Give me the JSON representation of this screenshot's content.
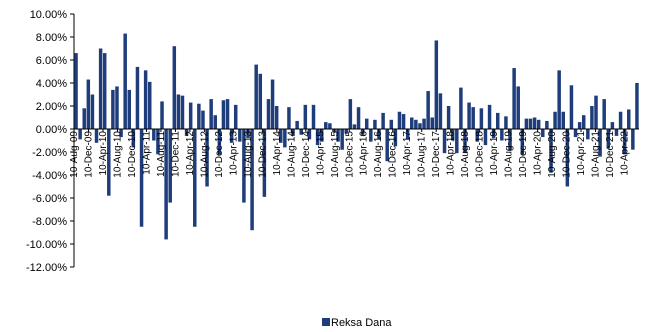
{
  "chart_data": {
    "type": "bar",
    "ylim": [
      -0.12,
      0.1
    ],
    "y_ticks": [
      0.1,
      0.08,
      0.06,
      0.04,
      0.02,
      0.0,
      -0.02,
      -0.04,
      -0.06,
      -0.08,
      -0.1,
      -0.12
    ],
    "y_tick_labels": [
      "10.00%",
      "8.00%",
      "6.00%",
      "4.00%",
      "2.00%",
      "0.00%",
      "-2.00%",
      "-4.00%",
      "-6.00%",
      "-8.00%",
      "-10.00%",
      "-12.00%"
    ],
    "x_tick_labels": [
      "10-Aug-09",
      "10-Dec-09",
      "10-Apr-10",
      "10-Aug-10",
      "10-Dec-10",
      "10-Apr-11",
      "10-Aug-11",
      "10-Dec-11",
      "10-Apr-12",
      "10-Aug-12",
      "10-Dec-12",
      "10-Apr-13",
      "10-Aug-13",
      "10-Dec-13",
      "10-Apr-14",
      "10-Aug-14",
      "10-Dec-14",
      "10-Apr-15",
      "10-Aug-15",
      "10-Dec-15",
      "10-Apr-16",
      "10-Aug-16",
      "10-Dec-16",
      "10-Apr-17",
      "10-Aug-17",
      "10-Dec-17",
      "10-Apr-18",
      "10-Aug-18",
      "10-Dec-18",
      "10-Apr-19",
      "10-Aug-19",
      "10-Dec-19",
      "10-Apr-20",
      "10-Aug-20",
      "10-Dec-20",
      "10-Apr-21",
      "10-Aug-21",
      "10-Dec-21",
      "10-Apr-22"
    ],
    "grid": false,
    "legend_position": "bottom-center",
    "series": [
      {
        "name": "Reksa Dana",
        "color": "#1f3d7a",
        "values": [
          0.066,
          -0.009,
          0.018,
          0.043,
          0.03,
          -0.012,
          0.07,
          0.066,
          -0.058,
          0.034,
          0.037,
          -0.007,
          0.083,
          0.034,
          -0.016,
          0.054,
          -0.085,
          0.051,
          0.041,
          -0.01,
          -0.022,
          0.024,
          -0.096,
          -0.064,
          0.072,
          0.03,
          0.029,
          -0.006,
          0.023,
          -0.085,
          0.022,
          0.016,
          -0.05,
          0.026,
          0.012,
          -0.022,
          0.025,
          0.026,
          -0.012,
          0.021,
          -0.011,
          -0.064,
          -0.008,
          -0.088,
          0.056,
          0.048,
          -0.059,
          0.026,
          0.043,
          0.02,
          -0.012,
          -0.016,
          0.019,
          -0.006,
          0.007,
          -0.005,
          0.021,
          -0.009,
          0.021,
          -0.014,
          -0.011,
          0.006,
          0.005,
          -0.003,
          -0.011,
          -0.018,
          -0.004,
          0.026,
          0.004,
          0.019,
          -0.005,
          0.009,
          -0.011,
          0.008,
          -0.009,
          0.014,
          -0.028,
          0.008,
          -0.015,
          0.015,
          0.013,
          -0.009,
          0.01,
          0.008,
          0.005,
          0.009,
          0.033,
          0.01,
          0.077,
          0.031,
          -0.021,
          0.02,
          -0.01,
          -0.021,
          0.036,
          -0.021,
          0.023,
          0.019,
          -0.011,
          0.018,
          -0.014,
          0.021,
          -0.008,
          0.014,
          -0.01,
          0.011,
          -0.019,
          0.053,
          0.037,
          -0.022,
          0.009,
          0.009,
          0.01,
          0.008,
          -0.007,
          0.007,
          -0.038,
          0.015,
          0.051,
          0.015,
          -0.05,
          0.038,
          -0.007,
          0.006,
          0.012,
          -0.009,
          0.02,
          0.029,
          -0.024,
          0.026,
          -0.017,
          0.006,
          -0.006,
          0.015,
          -0.022,
          0.017,
          -0.018,
          0.04
        ]
      }
    ]
  }
}
